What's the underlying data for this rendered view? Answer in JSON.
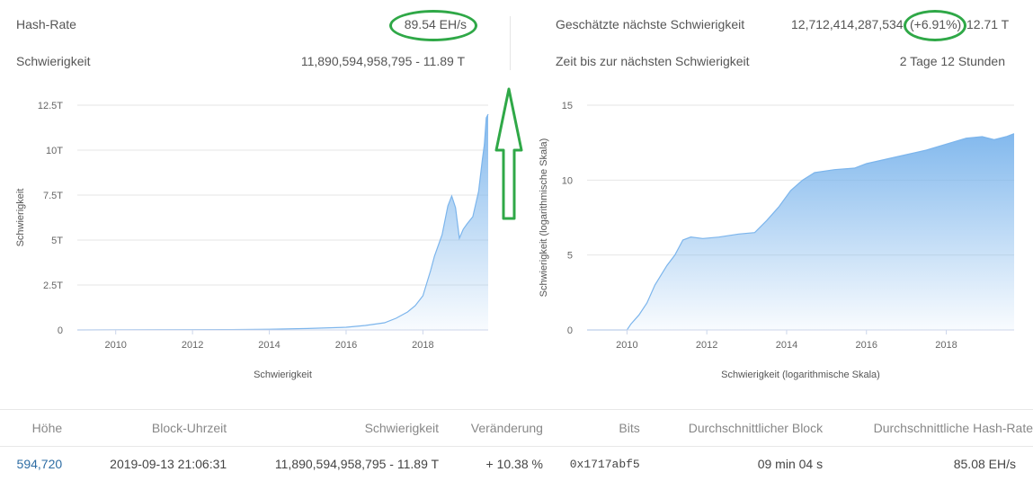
{
  "stats": {
    "hashrate_label": "Hash-Rate",
    "hashrate_value": "89.54 EH/s",
    "difficulty_label": "Schwierigkeit",
    "difficulty_value": "11,890,594,958,795 - 11.89 T",
    "next_difficulty_label": "Geschätzte nächste Schwierigkeit",
    "next_difficulty_number": "12,712,414,287,534",
    "next_difficulty_change": "(+6.91%)",
    "next_difficulty_short": "12.71 T",
    "time_to_next_label": "Zeit bis zur nächsten Schwierigkeit",
    "time_to_next_value": "2 Tage 12 Stunden"
  },
  "annotations": {
    "circle_color": "#2fa847",
    "arrow_color": "#2fa847"
  },
  "chart_data": [
    {
      "type": "area",
      "title": "",
      "xlabel": "Schwierigkeit",
      "ylabel": "Schwierigkeit",
      "xlim": [
        2009.0,
        2019.7
      ],
      "ylim": [
        0,
        12.5
      ],
      "x_ticks": [
        2010,
        2012,
        2014,
        2016,
        2018
      ],
      "y_ticks": [
        0,
        2.5,
        5,
        7.5,
        10,
        12.5
      ],
      "y_tick_labels": [
        "0",
        "2.5T",
        "5T",
        "7.5T",
        "10T",
        "12.5T"
      ],
      "grid": true,
      "color": "#7cb5ec",
      "x": [
        2009.0,
        2013.0,
        2014.0,
        2015.0,
        2016.0,
        2016.5,
        2017.0,
        2017.3,
        2017.6,
        2017.8,
        2018.0,
        2018.1,
        2018.2,
        2018.3,
        2018.5,
        2018.65,
        2018.75,
        2018.85,
        2018.95,
        2019.05,
        2019.15,
        2019.3,
        2019.45,
        2019.55,
        2019.6,
        2019.65,
        2019.7
      ],
      "y": [
        0.0,
        0.02,
        0.04,
        0.08,
        0.15,
        0.25,
        0.4,
        0.65,
        1.0,
        1.35,
        1.9,
        2.6,
        3.3,
        4.1,
        5.3,
        6.9,
        7.45,
        6.8,
        5.1,
        5.6,
        5.9,
        6.3,
        7.7,
        9.5,
        10.3,
        11.8,
        12.0
      ]
    },
    {
      "type": "area",
      "title": "",
      "xlabel": "Schwierigkeit (logarithmische Skala)",
      "ylabel": "Schwierigkeit (logarithmische Skala)",
      "xlim": [
        2009.0,
        2019.7
      ],
      "ylim": [
        0,
        15
      ],
      "x_ticks": [
        2010,
        2012,
        2014,
        2016,
        2018
      ],
      "y_ticks": [
        0,
        5,
        10,
        15
      ],
      "y_tick_labels": [
        "0",
        "5",
        "10",
        "15"
      ],
      "grid": true,
      "color": "#7cb5ec",
      "x": [
        2009.0,
        2010.0,
        2010.1,
        2010.3,
        2010.5,
        2010.7,
        2011.0,
        2011.2,
        2011.4,
        2011.6,
        2011.9,
        2012.3,
        2012.8,
        2013.2,
        2013.5,
        2013.8,
        2014.1,
        2014.4,
        2014.7,
        2015.2,
        2015.7,
        2016.0,
        2016.5,
        2017.0,
        2017.5,
        2018.0,
        2018.5,
        2018.9,
        2019.2,
        2019.5,
        2019.7
      ],
      "y": [
        0.0,
        0.0,
        0.4,
        1.0,
        1.8,
        3.0,
        4.3,
        5.0,
        6.0,
        6.2,
        6.1,
        6.2,
        6.4,
        6.5,
        7.3,
        8.2,
        9.3,
        10.0,
        10.5,
        10.7,
        10.8,
        11.1,
        11.4,
        11.7,
        12.0,
        12.4,
        12.8,
        12.9,
        12.7,
        12.9,
        13.1
      ]
    }
  ],
  "table": {
    "headers": [
      "Höhe",
      "Block-Uhrzeit",
      "Schwierigkeit",
      "Veränderung",
      "Bits",
      "Durchschnittlicher Block",
      "Durchschnittliche Hash-Rate"
    ],
    "row": {
      "height": "594,720",
      "time": "2019-09-13 21:06:31",
      "difficulty": "11,890,594,958,795 - 11.89 T",
      "change": "+ 10.38 %",
      "bits": "0x1717abf5",
      "avg_block": "09 min 04 s",
      "avg_hashrate": "85.08 EH/s"
    }
  }
}
